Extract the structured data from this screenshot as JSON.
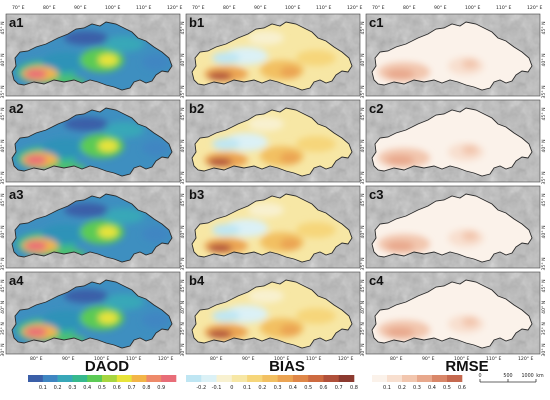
{
  "columns": [
    {
      "key": "daod",
      "title": "DAOD",
      "panels": [
        "a1",
        "a2",
        "a3",
        "a4"
      ],
      "colorbar": {
        "colors": [
          "#3b5fa8",
          "#3f86c2",
          "#38a7b8",
          "#37b98e",
          "#5ccb55",
          "#a7d640",
          "#e8e43a",
          "#f3b548",
          "#ee8a6a",
          "#e86d78"
        ],
        "ticks": [
          "0.1",
          "0.2",
          "0.3",
          "0.4",
          "0.5",
          "0.6",
          "0.7",
          "0.8",
          "0.9"
        ]
      }
    },
    {
      "key": "bias",
      "title": "BIAS",
      "panels": [
        "b1",
        "b2",
        "b3",
        "b4"
      ],
      "colorbar": {
        "colors": [
          "#bfe6f3",
          "#dbf1f6",
          "#f8f1d0",
          "#f7e7a5",
          "#f6d67a",
          "#f2c062",
          "#eba453",
          "#df8748",
          "#cd6a40",
          "#b0503a",
          "#8c3a2f"
        ],
        "ticks": [
          "-0.2",
          "-0.1",
          "0",
          "0.1",
          "0.2",
          "0.3",
          "0.4",
          "0.5",
          "0.6",
          "0.7",
          "0.8"
        ]
      }
    },
    {
      "key": "rmse",
      "title": "RMSE",
      "panels": [
        "c1",
        "c2",
        "c3",
        "c4"
      ],
      "colorbar": {
        "colors": [
          "#fbf2ea",
          "#f8dfcf",
          "#f2c6ae",
          "#e8a88c",
          "#d98769",
          "#c5694f"
        ],
        "ticks": [
          "0.1",
          "0.2",
          "0.3",
          "0.4",
          "0.5",
          "0.6"
        ]
      }
    }
  ],
  "top_lon_labels": [
    "70° E",
    "80° E",
    "90° E",
    "100° E",
    "110° E",
    "120° E"
  ],
  "bottom_lon_labels": [
    "80° E",
    "90° E",
    "100° E",
    "110° E",
    "120° E"
  ],
  "left_lat_labels": [
    "45° N",
    "40° N",
    "35° N"
  ],
  "bottom_row_lat_labels": [
    "45° N",
    "40° N",
    "35° N",
    "30° N"
  ],
  "scale_bar": {
    "labels": [
      "0",
      "500",
      "1000"
    ],
    "unit": "km"
  },
  "palette": {
    "relief_base": "#b5b5b5",
    "outline": "#2a2a2a"
  }
}
